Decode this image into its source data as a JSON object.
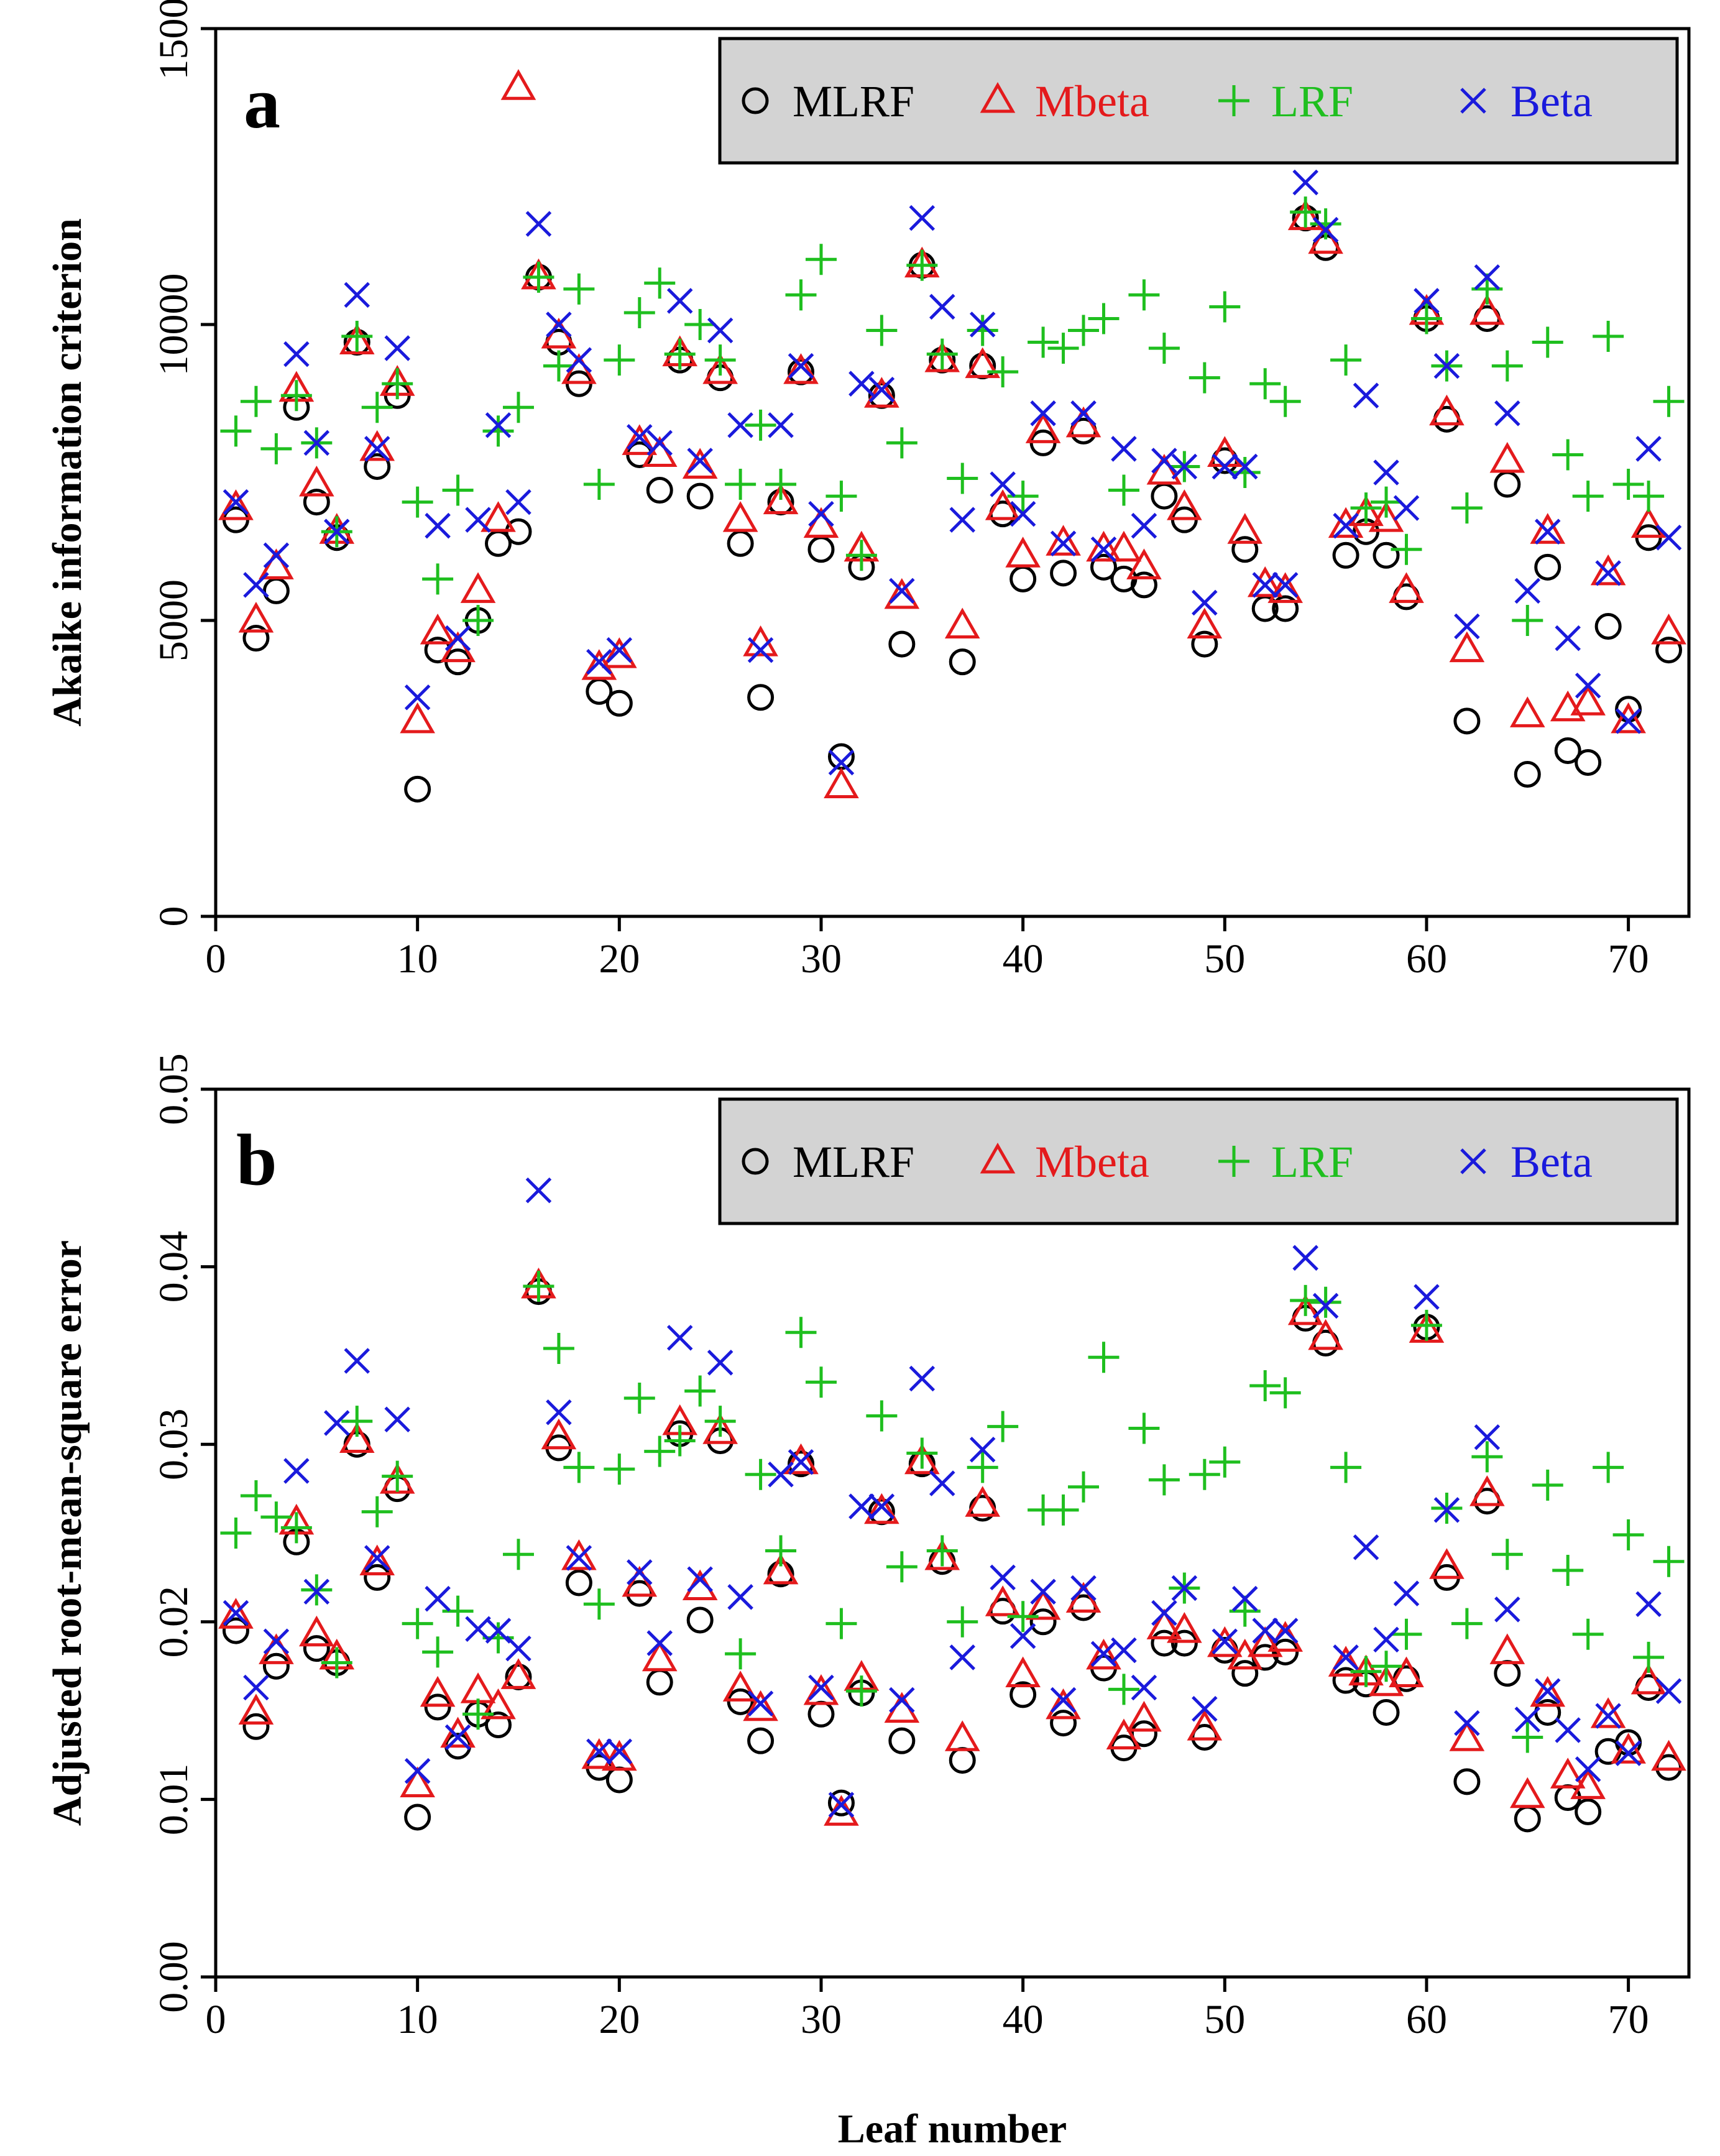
{
  "figure": {
    "xlabel": "Leaf number",
    "series_colors": {
      "MLRF": "#000000",
      "Mbeta": "#e41a1c",
      "LRF": "#1fbf1f",
      "Beta": "#1a1adc"
    },
    "legend_bg": "#d3d3d3"
  },
  "chart_data": [
    {
      "type": "scatter",
      "panel": "a",
      "ylabel": "Akaike information criterion",
      "xlim": [
        0,
        73
      ],
      "ylim": [
        0,
        15000
      ],
      "xticks": [
        0,
        10,
        20,
        30,
        40,
        50,
        60,
        70
      ],
      "yticks": [
        0,
        5000,
        10000,
        15000
      ],
      "legend": [
        "MLRF",
        "Mbeta",
        "LRF",
        "Beta"
      ],
      "legend_position": "top-right",
      "x": [
        1,
        2,
        3,
        4,
        5,
        6,
        7,
        8,
        9,
        10,
        11,
        12,
        13,
        14,
        15,
        16,
        17,
        18,
        19,
        20,
        21,
        22,
        23,
        24,
        25,
        26,
        27,
        28,
        29,
        30,
        31,
        32,
        33,
        34,
        35,
        36,
        37,
        38,
        39,
        40,
        41,
        42,
        43,
        44,
        45,
        46,
        47,
        48,
        49,
        50,
        51,
        52,
        53,
        54,
        55,
        56,
        57,
        58,
        59,
        60,
        61,
        62,
        63,
        64,
        65,
        66,
        67,
        68,
        69,
        70,
        71,
        72
      ],
      "series": [
        {
          "name": "MLRF",
          "marker": "circle",
          "values": [
            6700,
            4700,
            5500,
            8600,
            7000,
            6400,
            9700,
            7600,
            8800,
            2150,
            4500,
            4300,
            5000,
            6300,
            6500,
            10800,
            9700,
            9000,
            3800,
            3600,
            7800,
            7200,
            9400,
            7100,
            9100,
            6300,
            3700,
            7000,
            9200,
            6200,
            2700,
            5900,
            8800,
            4600,
            11000,
            9400,
            4300,
            9300,
            6800,
            5700,
            8000,
            5800,
            8200,
            5900,
            5700,
            5600,
            7100,
            6700,
            4600,
            7700,
            6200,
            5200,
            5200,
            11800,
            11300,
            6100,
            6500,
            6100,
            5400,
            10100,
            8400,
            3300,
            10100,
            7300,
            2400,
            5900,
            2800,
            2600,
            4900,
            3500,
            6400,
            4500
          ]
        },
        {
          "name": "Mbeta",
          "marker": "triangle",
          "values": [
            6900,
            5000,
            5900,
            8900,
            7300,
            6500,
            9700,
            7900,
            9000,
            3300,
            4800,
            4500,
            5500,
            6700,
            14000,
            10800,
            9800,
            9200,
            4200,
            4400,
            8000,
            7800,
            9500,
            7600,
            9200,
            6700,
            4600,
            7000,
            9200,
            6600,
            2200,
            6200,
            8800,
            5400,
            11000,
            9400,
            4900,
            9300,
            6900,
            6100,
            8200,
            6300,
            8300,
            6200,
            6200,
            5900,
            7500,
            6900,
            4900,
            7800,
            6500,
            5600,
            5500,
            11800,
            11400,
            6600,
            6800,
            6700,
            5500,
            10200,
            8500,
            4500,
            10200,
            7700,
            3400,
            6500,
            3500,
            3600,
            5800,
            3300,
            6600,
            4800
          ]
        },
        {
          "name": "LRF",
          "marker": "plus",
          "values": [
            8200,
            8700,
            7900,
            8800,
            8000,
            6500,
            9800,
            8600,
            9000,
            7000,
            5700,
            7200,
            5000,
            8200,
            8600,
            10800,
            9300,
            10600,
            7300,
            9400,
            10200,
            10700,
            9500,
            10000,
            9400,
            7300,
            8300,
            7300,
            10500,
            11100,
            7100,
            6100,
            9900,
            8000,
            11000,
            9500,
            7400,
            9900,
            9200,
            7100,
            9700,
            9600,
            9900,
            10100,
            7200,
            10500,
            9600,
            7600,
            9100,
            10300,
            7500,
            9000,
            8700,
            11900,
            11700,
            9400,
            6900,
            7000,
            6200,
            10100,
            9300,
            6900,
            10600,
            9300,
            5000,
            9700,
            7800,
            7100,
            9800,
            7300,
            7100,
            8700
          ]
        },
        {
          "name": "Beta",
          "marker": "cross",
          "values": [
            7000,
            5600,
            6100,
            9500,
            8000,
            6500,
            10500,
            7900,
            9600,
            3700,
            6600,
            4700,
            6700,
            8300,
            7000,
            11700,
            10000,
            9400,
            4300,
            4500,
            8100,
            8000,
            10400,
            7700,
            9900,
            8300,
            4500,
            8300,
            9300,
            6800,
            2600,
            9000,
            8900,
            5500,
            11800,
            10300,
            6700,
            10000,
            7300,
            6800,
            8500,
            6300,
            8500,
            6200,
            7900,
            6600,
            7700,
            7600,
            5300,
            7600,
            7600,
            5600,
            5600,
            12400,
            11600,
            6600,
            8800,
            7500,
            6900,
            10400,
            9300,
            4900,
            10800,
            8500,
            5500,
            6500,
            4700,
            3900,
            5800,
            3300,
            7900,
            6400
          ]
        }
      ]
    },
    {
      "type": "scatter",
      "panel": "b",
      "ylabel": "Adjusted root-mean-square error",
      "xlabel": "Leaf number",
      "xlim": [
        0,
        73
      ],
      "ylim": [
        0,
        0.05
      ],
      "xticks": [
        0,
        10,
        20,
        30,
        40,
        50,
        60,
        70
      ],
      "yticks": [
        "0.00",
        "0.01",
        "0.02",
        "0.03",
        "0.04",
        "0.05"
      ],
      "legend": [
        "MLRF",
        "Mbeta",
        "LRF",
        "Beta"
      ],
      "legend_position": "top-right",
      "x": [
        1,
        2,
        3,
        4,
        5,
        6,
        7,
        8,
        9,
        10,
        11,
        12,
        13,
        14,
        15,
        16,
        17,
        18,
        19,
        20,
        21,
        22,
        23,
        24,
        25,
        26,
        27,
        28,
        29,
        30,
        31,
        32,
        33,
        34,
        35,
        36,
        37,
        38,
        39,
        40,
        41,
        42,
        43,
        44,
        45,
        46,
        47,
        48,
        49,
        50,
        51,
        52,
        53,
        54,
        55,
        56,
        57,
        58,
        59,
        60,
        61,
        62,
        63,
        64,
        65,
        66,
        67,
        68,
        69,
        70,
        71,
        72
      ],
      "series": [
        {
          "name": "MLRF",
          "marker": "circle",
          "values": [
            0.0195,
            0.0141,
            0.0175,
            0.0245,
            0.0185,
            0.0177,
            0.03,
            0.0225,
            0.0275,
            0.009,
            0.0152,
            0.013,
            0.0148,
            0.0142,
            0.0169,
            0.0386,
            0.0298,
            0.0222,
            0.0118,
            0.0111,
            0.0216,
            0.0166,
            0.0306,
            0.0201,
            0.0302,
            0.0155,
            0.0133,
            0.0227,
            0.0289,
            0.0148,
            0.0098,
            0.016,
            0.0262,
            0.0133,
            0.0289,
            0.0234,
            0.0122,
            0.0264,
            0.0206,
            0.0159,
            0.02,
            0.0143,
            0.0208,
            0.0174,
            0.0129,
            0.0137,
            0.0188,
            0.0188,
            0.0135,
            0.0184,
            0.0171,
            0.018,
            0.0183,
            0.0371,
            0.0357,
            0.0167,
            0.0165,
            0.0149,
            0.0168,
            0.0366,
            0.0225,
            0.011,
            0.0268,
            0.0171,
            0.0089,
            0.0149,
            0.0101,
            0.0093,
            0.0127,
            0.0132,
            0.0163,
            0.0118
          ]
        },
        {
          "name": "Mbeta",
          "marker": "triangle",
          "values": [
            0.0203,
            0.0149,
            0.0183,
            0.0256,
            0.0193,
            0.018,
            0.0302,
            0.0233,
            0.0279,
            0.0108,
            0.0159,
            0.0136,
            0.0161,
            0.0152,
            0.0169,
            0.0389,
            0.0304,
            0.0236,
            0.0124,
            0.0123,
            0.0221,
            0.0179,
            0.0312,
            0.0219,
            0.0307,
            0.0162,
            0.0151,
            0.0228,
            0.029,
            0.016,
            0.0092,
            0.0168,
            0.0262,
            0.015,
            0.029,
            0.0236,
            0.0134,
            0.0266,
            0.021,
            0.017,
            0.0208,
            0.0152,
            0.0212,
            0.018,
            0.0135,
            0.0145,
            0.0197,
            0.0195,
            0.014,
            0.0187,
            0.018,
            0.0187,
            0.019,
            0.0374,
            0.036,
            0.0176,
            0.0171,
            0.0165,
            0.017,
            0.0364,
            0.0231,
            0.0134,
            0.0272,
            0.0183,
            0.0102,
            0.0159,
            0.0113,
            0.0107,
            0.0147,
            0.0127,
            0.0166,
            0.0123
          ]
        },
        {
          "name": "LRF",
          "marker": "plus",
          "values": [
            0.025,
            0.0271,
            0.0259,
            0.0253,
            0.0218,
            0.0177,
            0.0313,
            0.0262,
            0.0282,
            0.0199,
            0.0183,
            0.0206,
            0.0148,
            0.0191,
            0.0238,
            0.0389,
            0.0354,
            0.0287,
            0.021,
            0.0286,
            0.0326,
            0.0296,
            0.0302,
            0.033,
            0.0313,
            0.0182,
            0.0283,
            0.024,
            0.0363,
            0.0335,
            0.0199,
            0.0161,
            0.0316,
            0.0231,
            0.0295,
            0.024,
            0.02,
            0.0287,
            0.031,
            0.0203,
            0.0263,
            0.0263,
            0.0276,
            0.0349,
            0.0162,
            0.0309,
            0.028,
            0.0219,
            0.0283,
            0.029,
            0.0206,
            0.0333,
            0.0329,
            0.0381,
            0.038,
            0.0287,
            0.0172,
            0.0175,
            0.0193,
            0.0367,
            0.0264,
            0.0199,
            0.0293,
            0.0238,
            0.0135,
            0.0277,
            0.0229,
            0.0193,
            0.0287,
            0.0249,
            0.018,
            0.0234
          ]
        },
        {
          "name": "Beta",
          "marker": "cross",
          "values": [
            0.0205,
            0.0163,
            0.0189,
            0.0285,
            0.0217,
            0.0312,
            0.0347,
            0.0236,
            0.0314,
            0.0116,
            0.0213,
            0.0135,
            0.0196,
            0.0195,
            0.0185,
            0.0443,
            0.0318,
            0.0236,
            0.0127,
            0.0127,
            0.0228,
            0.0188,
            0.036,
            0.0224,
            0.0346,
            0.0214,
            0.0154,
            0.0283,
            0.029,
            0.0163,
            0.0097,
            0.0265,
            0.0265,
            0.0156,
            0.0337,
            0.0278,
            0.018,
            0.0297,
            0.0225,
            0.0192,
            0.0217,
            0.0156,
            0.0219,
            0.0182,
            0.0184,
            0.0163,
            0.0205,
            0.0219,
            0.0151,
            0.0189,
            0.0213,
            0.0195,
            0.0195,
            0.0405,
            0.0378,
            0.018,
            0.0242,
            0.019,
            0.0216,
            0.0383,
            0.0263,
            0.0143,
            0.0304,
            0.0207,
            0.0145,
            0.0161,
            0.0139,
            0.0117,
            0.0147,
            0.0126,
            0.021,
            0.0161
          ]
        }
      ]
    }
  ]
}
